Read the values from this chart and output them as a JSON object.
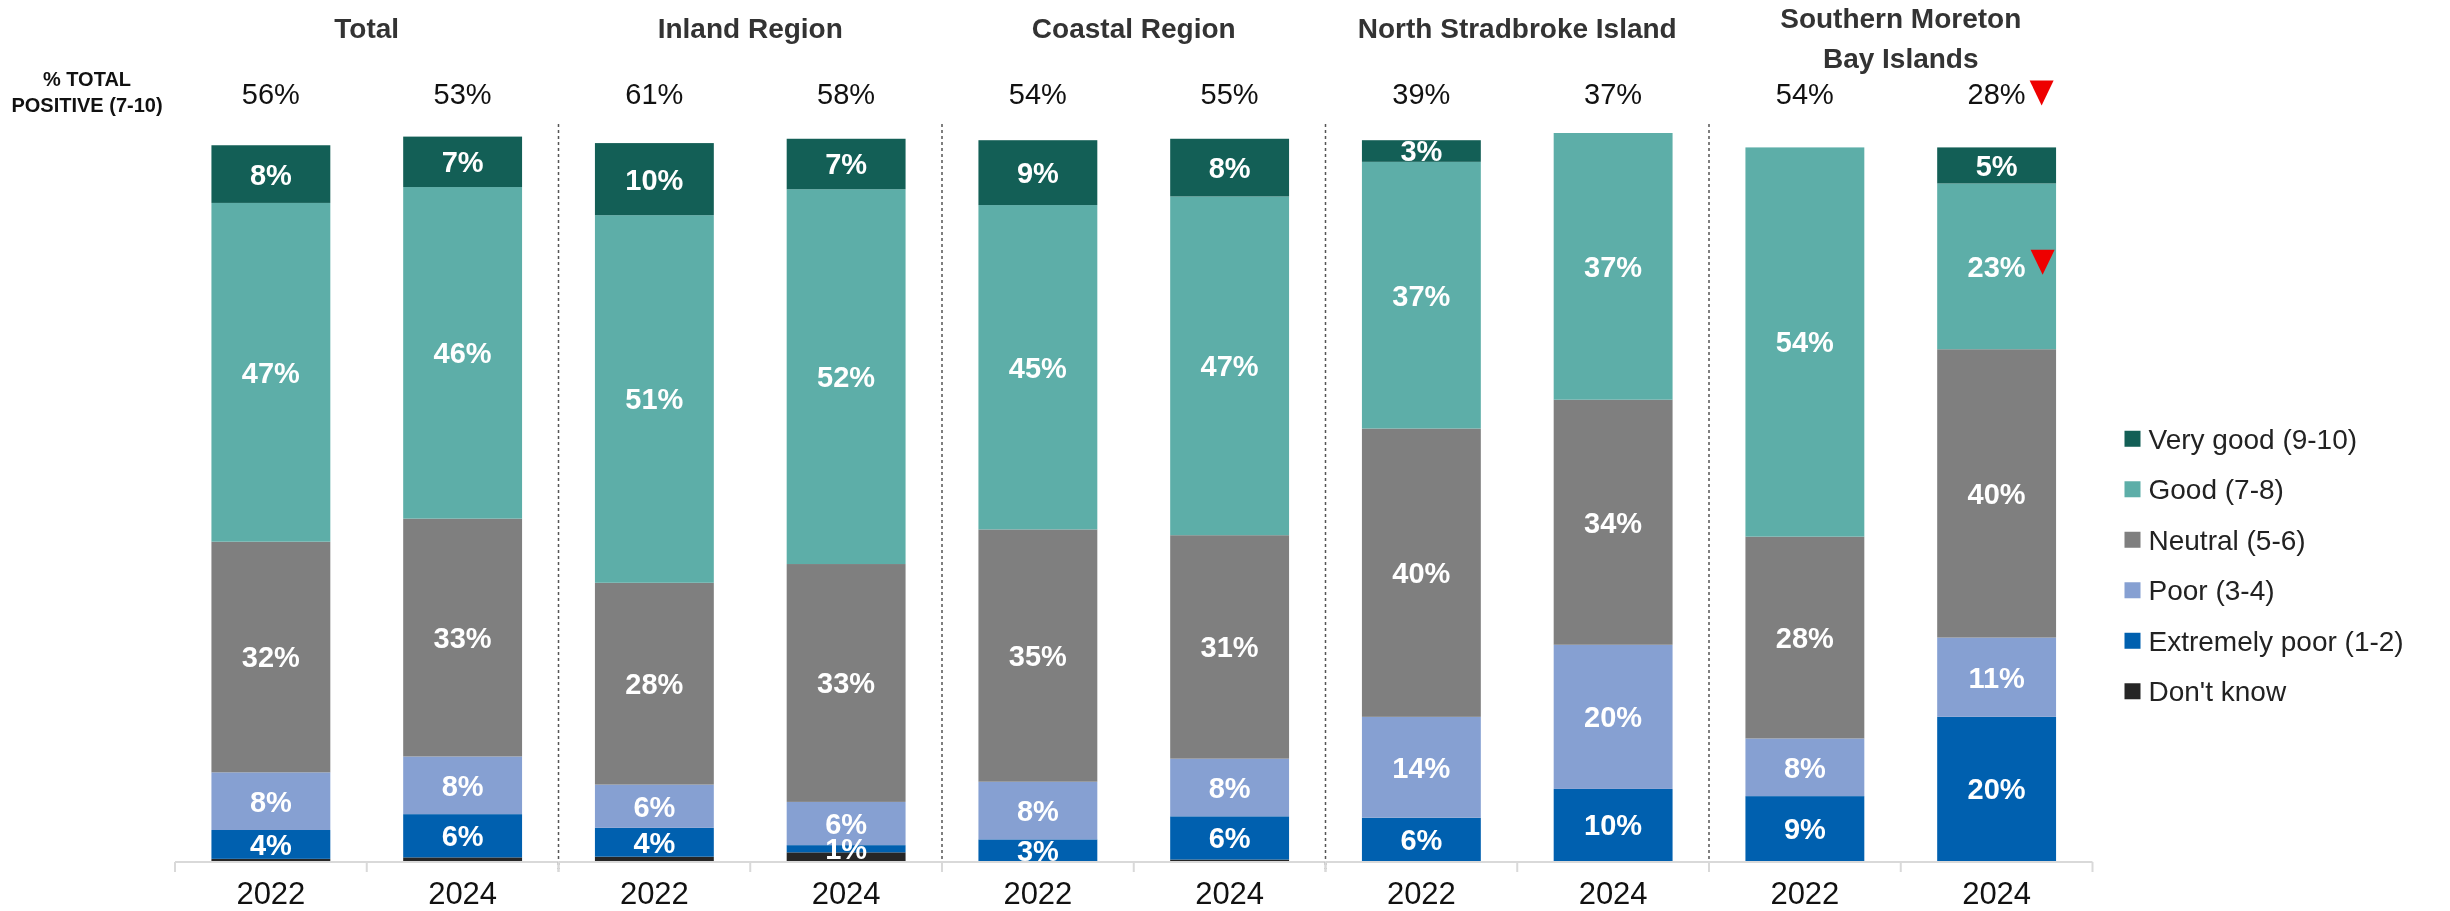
{
  "chart_data": [
    {
      "type": "bar",
      "title": "Total",
      "categories": [
        "2022",
        "2024"
      ],
      "stacked": true,
      "annotations": [
        "% TOTAL POSITIVE (7-10)",
        "56%",
        "53%"
      ],
      "series": [
        {
          "color": "#262626",
          "values": [
            0.3,
            0.5
          ]
        },
        {
          "color": "#0060af",
          "values": [
            4,
            6
          ],
          "value_labels": [
            "4%",
            "6%"
          ]
        },
        {
          "color": "#86a0d2",
          "values": [
            8,
            8
          ],
          "value_labels": [
            "8%",
            "8%"
          ]
        },
        {
          "color": "#7f7f7f",
          "values": [
            32,
            33
          ],
          "value_labels": [
            "32%",
            "33%"
          ]
        },
        {
          "color": "#5daea8",
          "values": [
            47,
            46
          ],
          "value_labels": [
            "47%",
            "46%"
          ]
        },
        {
          "color": "#135f56",
          "values": [
            8,
            7
          ],
          "value_labels": [
            "8%",
            "7%"
          ]
        }
      ]
    },
    {
      "type": "bar",
      "title": "Inland Region",
      "categories": [
        "2022",
        "2024"
      ],
      "stacked": true,
      "annotations": [
        "61%",
        "58%"
      ],
      "series": [
        {
          "color": "#262626",
          "values": [
            0.6,
            1.2
          ]
        },
        {
          "color": "#0060af",
          "values": [
            4,
            1
          ],
          "value_labels": [
            "4%",
            "1%"
          ]
        },
        {
          "color": "#86a0d2",
          "values": [
            6,
            6
          ],
          "value_labels": [
            "6%",
            "6%"
          ]
        },
        {
          "color": "#7f7f7f",
          "values": [
            28,
            33
          ],
          "value_labels": [
            "28%",
            "33%"
          ]
        },
        {
          "color": "#5daea8",
          "values": [
            51,
            52
          ],
          "value_labels": [
            "51%",
            "52%"
          ]
        },
        {
          "color": "#135f56",
          "values": [
            10,
            7
          ],
          "value_labels": [
            "10%",
            "7%"
          ]
        }
      ]
    },
    {
      "type": "bar",
      "title": "Coastal Region",
      "categories": [
        "2022",
        "2024"
      ],
      "stacked": true,
      "annotations": [
        "54%",
        "55%"
      ],
      "series": [
        {
          "color": "#262626",
          "values": [
            null,
            0.2
          ]
        },
        {
          "color": "#0060af",
          "values": [
            3,
            6
          ],
          "value_labels": [
            "3%",
            "6%"
          ]
        },
        {
          "color": "#86a0d2",
          "values": [
            8,
            8
          ],
          "value_labels": [
            "8%",
            "8%"
          ]
        },
        {
          "color": "#7f7f7f",
          "values": [
            35,
            31
          ],
          "value_labels": [
            "35%",
            "31%"
          ]
        },
        {
          "color": "#5daea8",
          "values": [
            45,
            47
          ],
          "value_labels": [
            "45%",
            "47%"
          ]
        },
        {
          "color": "#135f56",
          "values": [
            9,
            8
          ],
          "value_labels": [
            "9%",
            "8%"
          ]
        }
      ]
    },
    {
      "type": "bar",
      "title": "North Stradbroke Island",
      "categories": [
        "2022",
        "2024"
      ],
      "stacked": true,
      "annotations": [
        "39%",
        "37%"
      ],
      "series": [
        {
          "color": "#0060af",
          "values": [
            6,
            10
          ],
          "value_labels": [
            "6%",
            "10%"
          ]
        },
        {
          "color": "#86a0d2",
          "values": [
            14,
            20
          ],
          "value_labels": [
            "14%",
            "20%"
          ]
        },
        {
          "color": "#7f7f7f",
          "values": [
            40,
            34
          ],
          "value_labels": [
            "40%",
            "34%"
          ]
        },
        {
          "color": "#5daea8",
          "values": [
            37,
            37
          ],
          "value_labels": [
            "37%",
            "37%"
          ]
        },
        {
          "color": "#135f56",
          "values": [
            3,
            null
          ],
          "value_labels": [
            "3%",
            null
          ]
        }
      ]
    },
    {
      "type": "bar",
      "title": "Southern Moreton Bay Islands",
      "categories": [
        "2022",
        "2024"
      ],
      "stacked": true,
      "annotations": [
        "54%",
        "28%"
      ],
      "legend": "right",
      "series": [
        {
          "name": "Don't know",
          "color": "#262626",
          "values": [
            null,
            null
          ]
        },
        {
          "name": "Extremely poor (1-2)",
          "color": "#0060af",
          "values": [
            9,
            20
          ],
          "value_labels": [
            "9%",
            "20%"
          ]
        },
        {
          "name": "Poor (3-4)",
          "color": "#86a0d2",
          "values": [
            8,
            11
          ],
          "value_labels": [
            "8%",
            "11%"
          ]
        },
        {
          "name": "Neutral (5-6)",
          "color": "#7f7f7f",
          "values": [
            28,
            40
          ],
          "value_labels": [
            "28%",
            "40%"
          ]
        },
        {
          "name": "Good (7-8)",
          "color": "#5daea8",
          "values": [
            54,
            23
          ],
          "value_labels": [
            "54%",
            "23%"
          ]
        },
        {
          "name": "Very good (9-10)",
          "color": "#135f56",
          "values": [
            null,
            5
          ],
          "value_labels": [
            null,
            "5%"
          ]
        }
      ]
    }
  ]
}
